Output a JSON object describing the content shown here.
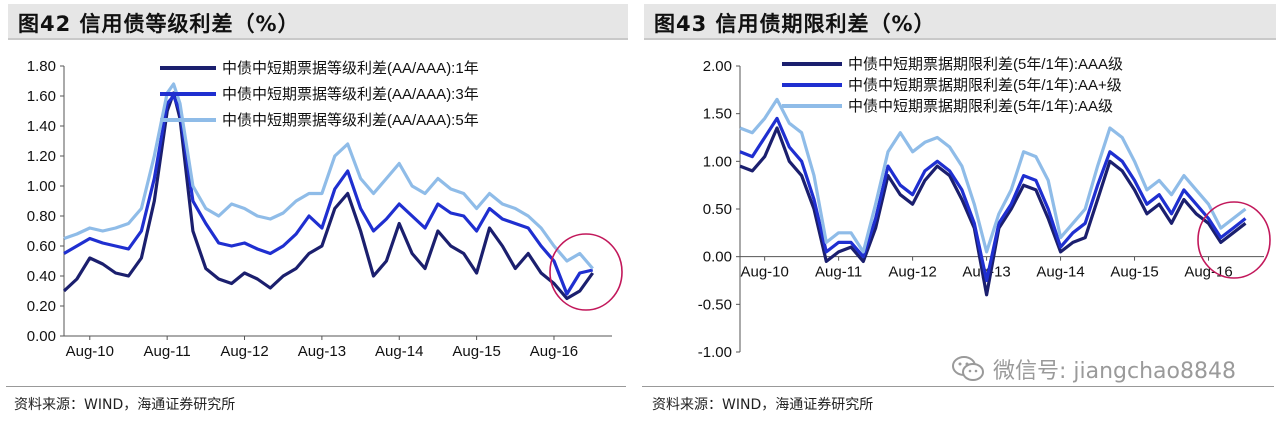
{
  "charts": [
    {
      "title": "图42 信用债等级利差（%）",
      "source": "资料来源：WIND，海通证券研究所",
      "chart_data": {
        "type": "line",
        "x_ticks": [
          "Aug-10",
          "Aug-11",
          "Aug-12",
          "Aug-13",
          "Aug-14",
          "Aug-15",
          "Aug-16"
        ],
        "ylim": [
          0.0,
          1.8
        ],
        "y_ticks": [
          "0.00",
          "0.20",
          "0.40",
          "0.60",
          "0.80",
          "1.00",
          "1.20",
          "1.40",
          "1.60",
          "1.80"
        ],
        "y_tick_values": [
          0.0,
          0.2,
          0.4,
          0.6,
          0.8,
          1.0,
          1.2,
          1.4,
          1.6,
          1.8
        ],
        "x_start": "2010-04",
        "x": [
          "2010-04",
          "2010-06",
          "2010-08",
          "2010-10",
          "2010-12",
          "2011-02",
          "2011-04",
          "2011-06",
          "2011-08",
          "2011-09",
          "2011-10",
          "2011-12",
          "2012-02",
          "2012-04",
          "2012-06",
          "2012-08",
          "2012-10",
          "2012-12",
          "2013-02",
          "2013-04",
          "2013-06",
          "2013-08",
          "2013-10",
          "2013-12",
          "2014-02",
          "2014-04",
          "2014-06",
          "2014-08",
          "2014-10",
          "2014-12",
          "2015-02",
          "2015-04",
          "2015-06",
          "2015-08",
          "2015-10",
          "2015-12",
          "2016-02",
          "2016-04",
          "2016-06",
          "2016-08",
          "2016-10",
          "2016-12",
          "2017-02"
        ],
        "series": [
          {
            "name": "中债中短期票据等级利差(AA/AAA):1年",
            "color": "#1b1f6e",
            "values": [
              0.3,
              0.38,
              0.52,
              0.48,
              0.42,
              0.4,
              0.52,
              0.9,
              1.5,
              1.62,
              1.45,
              0.7,
              0.45,
              0.38,
              0.35,
              0.42,
              0.38,
              0.32,
              0.4,
              0.45,
              0.55,
              0.6,
              0.85,
              0.95,
              0.7,
              0.4,
              0.5,
              0.75,
              0.55,
              0.45,
              0.7,
              0.6,
              0.55,
              0.42,
              0.72,
              0.6,
              0.45,
              0.55,
              0.42,
              0.35,
              0.25,
              0.3,
              0.42
            ]
          },
          {
            "name": "中债中短期票据等级利差(AA/AAA):3年",
            "color": "#1f2fd0",
            "values": [
              0.55,
              0.6,
              0.65,
              0.62,
              0.6,
              0.58,
              0.7,
              1.05,
              1.55,
              1.6,
              1.5,
              0.9,
              0.75,
              0.62,
              0.6,
              0.62,
              0.58,
              0.55,
              0.6,
              0.68,
              0.8,
              0.72,
              0.98,
              1.1,
              0.85,
              0.7,
              0.78,
              0.88,
              0.8,
              0.72,
              0.88,
              0.82,
              0.8,
              0.7,
              0.85,
              0.78,
              0.75,
              0.72,
              0.6,
              0.5,
              0.28,
              0.42,
              0.44
            ]
          },
          {
            "name": "中债中短期票据等级利差(AA/AAA):5年",
            "color": "#8fbce8",
            "values": [
              0.65,
              0.68,
              0.72,
              0.7,
              0.72,
              0.75,
              0.85,
              1.2,
              1.62,
              1.68,
              1.55,
              1.0,
              0.85,
              0.8,
              0.88,
              0.85,
              0.8,
              0.78,
              0.82,
              0.9,
              0.95,
              0.95,
              1.2,
              1.28,
              1.05,
              0.95,
              1.05,
              1.15,
              1.0,
              0.95,
              1.05,
              0.98,
              0.95,
              0.85,
              0.95,
              0.88,
              0.85,
              0.8,
              0.72,
              0.6,
              0.5,
              0.55,
              0.45
            ]
          }
        ]
      }
    },
    {
      "title": "图43 信用债期限利差（%）",
      "source": "资料来源：WIND，海通证券研究所",
      "chart_data": {
        "type": "line",
        "x_ticks": [
          "Aug-10",
          "Aug-11",
          "Aug-12",
          "Aug-13",
          "Aug-14",
          "Aug-15",
          "Aug-16"
        ],
        "ylim": [
          -1.0,
          2.0
        ],
        "y_ticks": [
          "-1.00",
          "-0.50",
          "0.00",
          "0.50",
          "1.00",
          "1.50",
          "2.00"
        ],
        "y_tick_values": [
          -1.0,
          -0.5,
          0.0,
          0.5,
          1.0,
          1.5,
          2.0
        ],
        "x_start": "2010-04",
        "x": [
          "2010-04",
          "2010-06",
          "2010-08",
          "2010-10",
          "2010-12",
          "2011-02",
          "2011-04",
          "2011-06",
          "2011-08",
          "2011-10",
          "2011-12",
          "2012-02",
          "2012-04",
          "2012-06",
          "2012-08",
          "2012-10",
          "2012-12",
          "2013-02",
          "2013-04",
          "2013-06",
          "2013-08",
          "2013-10",
          "2013-12",
          "2014-02",
          "2014-04",
          "2014-06",
          "2014-08",
          "2014-10",
          "2014-12",
          "2015-02",
          "2015-04",
          "2015-06",
          "2015-08",
          "2015-10",
          "2015-12",
          "2016-02",
          "2016-04",
          "2016-06",
          "2016-08",
          "2016-10",
          "2016-12",
          "2017-02"
        ],
        "series": [
          {
            "name": "中债中短期票据期限利差(5年/1年):AAA级",
            "color": "#1b1f6e",
            "values": [
              0.95,
              0.9,
              1.05,
              1.35,
              1.0,
              0.85,
              0.5,
              -0.05,
              0.05,
              0.1,
              -0.05,
              0.3,
              0.85,
              0.65,
              0.55,
              0.8,
              0.95,
              0.85,
              0.6,
              0.3,
              -0.4,
              0.3,
              0.5,
              0.75,
              0.7,
              0.4,
              0.05,
              0.15,
              0.2,
              0.6,
              1.0,
              0.9,
              0.7,
              0.45,
              0.55,
              0.35,
              0.6,
              0.45,
              0.35,
              0.15,
              0.25,
              0.35
            ]
          },
          {
            "name": "中债中短期票据期限利差(5年/1年):AA+级",
            "color": "#1f2fd0",
            "values": [
              1.1,
              1.05,
              1.25,
              1.45,
              1.15,
              1.0,
              0.6,
              0.05,
              0.15,
              0.15,
              0.0,
              0.4,
              0.95,
              0.75,
              0.65,
              0.9,
              1.0,
              0.9,
              0.7,
              0.35,
              -0.25,
              0.35,
              0.55,
              0.85,
              0.8,
              0.5,
              0.1,
              0.25,
              0.35,
              0.75,
              1.1,
              1.0,
              0.8,
              0.55,
              0.65,
              0.45,
              0.7,
              0.55,
              0.4,
              0.2,
              0.3,
              0.4
            ]
          },
          {
            "name": "中债中短期票据期限利差(5年/1年):AA级",
            "color": "#8fbce8",
            "values": [
              1.35,
              1.3,
              1.45,
              1.65,
              1.4,
              1.3,
              0.85,
              0.15,
              0.25,
              0.25,
              0.05,
              0.55,
              1.1,
              1.3,
              1.1,
              1.2,
              1.25,
              1.15,
              0.95,
              0.55,
              0.05,
              0.45,
              0.7,
              1.1,
              1.05,
              0.8,
              0.2,
              0.35,
              0.5,
              0.95,
              1.35,
              1.25,
              1.0,
              0.7,
              0.8,
              0.65,
              0.85,
              0.7,
              0.55,
              0.3,
              0.4,
              0.5
            ]
          }
        ]
      }
    }
  ],
  "watermark": "微信号: jiangchao8848"
}
